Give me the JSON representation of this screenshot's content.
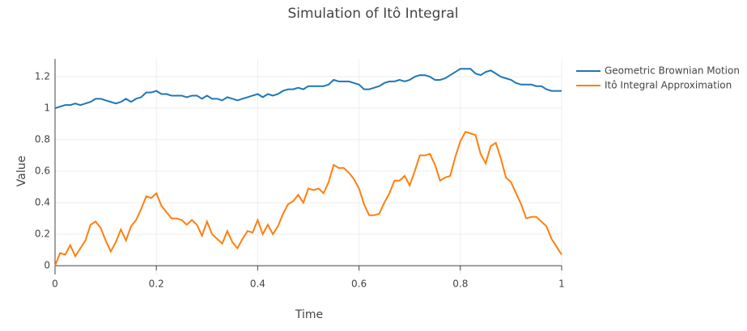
{
  "chart_data": {
    "type": "line",
    "title": "Simulation of Itô Integral",
    "x_label": "Time",
    "y_label": "Value",
    "x": [
      0,
      0.01,
      0.02,
      0.03,
      0.04,
      0.05,
      0.06,
      0.07,
      0.08,
      0.09,
      0.1,
      0.11,
      0.12,
      0.13,
      0.14,
      0.15,
      0.16,
      0.17,
      0.18,
      0.19,
      0.2,
      0.21,
      0.22,
      0.23,
      0.24,
      0.25,
      0.26,
      0.27,
      0.28,
      0.29,
      0.3,
      0.31,
      0.32,
      0.33,
      0.34,
      0.35,
      0.36,
      0.37,
      0.38,
      0.39,
      0.4,
      0.41,
      0.42,
      0.43,
      0.44,
      0.45,
      0.46,
      0.47,
      0.48,
      0.49,
      0.5,
      0.51,
      0.52,
      0.53,
      0.54,
      0.55,
      0.56,
      0.57,
      0.58,
      0.59,
      0.6,
      0.61,
      0.62,
      0.63,
      0.64,
      0.65,
      0.66,
      0.67,
      0.68,
      0.69,
      0.7,
      0.71,
      0.72,
      0.73,
      0.74,
      0.75,
      0.76,
      0.77,
      0.78,
      0.79,
      0.8,
      0.81,
      0.82,
      0.83,
      0.84,
      0.85,
      0.86,
      0.87,
      0.88,
      0.89,
      0.9,
      0.91,
      0.92,
      0.93,
      0.94,
      0.95,
      0.96,
      0.97,
      0.98,
      0.99,
      1
    ],
    "series": [
      {
        "name": "Geometric Brownian Motion",
        "color": "#1f77b4",
        "values": [
          1.0,
          1.01,
          1.02,
          1.02,
          1.03,
          1.02,
          1.03,
          1.04,
          1.06,
          1.06,
          1.05,
          1.04,
          1.03,
          1.04,
          1.06,
          1.04,
          1.06,
          1.07,
          1.1,
          1.1,
          1.11,
          1.09,
          1.09,
          1.08,
          1.08,
          1.08,
          1.07,
          1.08,
          1.08,
          1.06,
          1.08,
          1.06,
          1.06,
          1.05,
          1.07,
          1.06,
          1.05,
          1.06,
          1.07,
          1.08,
          1.09,
          1.07,
          1.09,
          1.08,
          1.09,
          1.11,
          1.12,
          1.12,
          1.13,
          1.12,
          1.14,
          1.14,
          1.14,
          1.14,
          1.15,
          1.18,
          1.17,
          1.17,
          1.17,
          1.16,
          1.15,
          1.12,
          1.12,
          1.13,
          1.14,
          1.16,
          1.17,
          1.17,
          1.18,
          1.17,
          1.18,
          1.2,
          1.21,
          1.21,
          1.2,
          1.18,
          1.18,
          1.19,
          1.21,
          1.23,
          1.25,
          1.25,
          1.25,
          1.22,
          1.21,
          1.23,
          1.24,
          1.22,
          1.2,
          1.19,
          1.18,
          1.16,
          1.15,
          1.15,
          1.15,
          1.14,
          1.14,
          1.12,
          1.11,
          1.11,
          1.11
        ]
      },
      {
        "name": "Itô Integral Approximation",
        "color": "#ff7f0e",
        "values": [
          0,
          0.08,
          0.07,
          0.13,
          0.06,
          0.11,
          0.16,
          0.26,
          0.28,
          0.24,
          0.16,
          0.09,
          0.15,
          0.23,
          0.16,
          0.25,
          0.29,
          0.36,
          0.44,
          0.43,
          0.46,
          0.38,
          0.34,
          0.3,
          0.3,
          0.29,
          0.26,
          0.29,
          0.26,
          0.19,
          0.28,
          0.2,
          0.17,
          0.14,
          0.22,
          0.15,
          0.11,
          0.17,
          0.22,
          0.21,
          0.29,
          0.2,
          0.26,
          0.2,
          0.25,
          0.33,
          0.39,
          0.41,
          0.45,
          0.4,
          0.49,
          0.48,
          0.49,
          0.46,
          0.53,
          0.64,
          0.62,
          0.62,
          0.59,
          0.55,
          0.49,
          0.39,
          0.32,
          0.32,
          0.33,
          0.4,
          0.46,
          0.54,
          0.54,
          0.57,
          0.51,
          0.6,
          0.7,
          0.7,
          0.71,
          0.64,
          0.54,
          0.56,
          0.57,
          0.69,
          0.79,
          0.85,
          0.84,
          0.83,
          0.71,
          0.65,
          0.76,
          0.78,
          0.68,
          0.56,
          0.53,
          0.46,
          0.39,
          0.3,
          0.31,
          0.31,
          0.28,
          0.25,
          0.17,
          0.12,
          0.07
        ]
      }
    ],
    "xlim": [
      0,
      1
    ],
    "ylim": [
      -0.056,
      1.313
    ],
    "xticks": [
      0,
      0.2,
      0.4,
      0.6,
      0.8,
      1
    ],
    "yticks": [
      0,
      0.2,
      0.4,
      0.6,
      0.8,
      1,
      1.2
    ],
    "grid": true,
    "legend": "right"
  }
}
